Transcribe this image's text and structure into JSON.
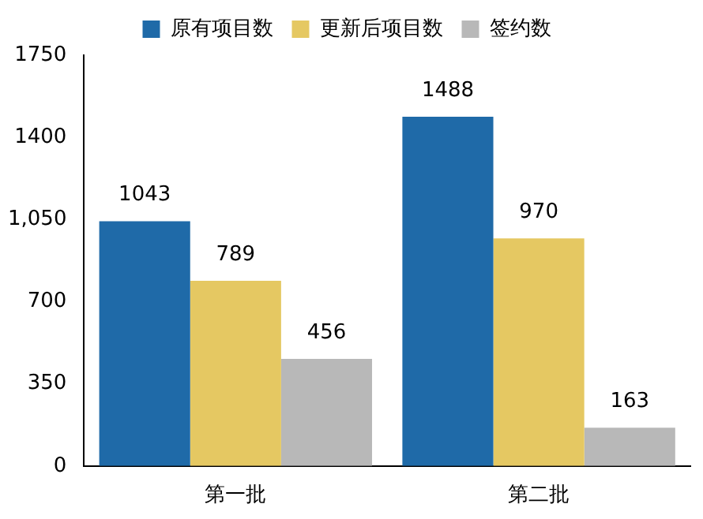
{
  "chart_data": {
    "type": "bar",
    "categories": [
      "第一批",
      "第二批"
    ],
    "series": [
      {
        "name": "原有项目数",
        "color": "#1f6aa8",
        "values": [
          1043,
          1488
        ]
      },
      {
        "name": "更新后项目数",
        "color": "#e5c862",
        "values": [
          789,
          970
        ]
      },
      {
        "name": "签约数",
        "color": "#b8b8b8",
        "values": [
          456,
          163
        ]
      }
    ],
    "ylim": [
      0,
      1750
    ],
    "yticks": [
      0,
      350,
      700,
      {
        "value": 1050,
        "label": "1,050"
      },
      1400,
      1750
    ],
    "grid": false,
    "legend": "top",
    "data_labels": true
  }
}
